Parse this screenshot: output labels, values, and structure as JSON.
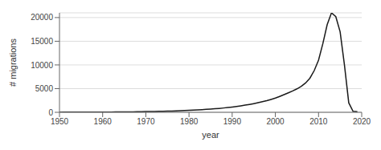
{
  "chart_data": {
    "type": "line",
    "xlabel": "year",
    "ylabel": "# migrations",
    "xlim": [
      1950,
      2020
    ],
    "ylim": [
      0,
      21000
    ],
    "xticks": [
      1950,
      1960,
      1970,
      1980,
      1990,
      2000,
      2010,
      2020
    ],
    "yticks": [
      0,
      5000,
      10000,
      15000,
      20000
    ],
    "grid": true,
    "color": "#1a1a1a",
    "x": [
      1950,
      1951,
      1952,
      1953,
      1954,
      1955,
      1956,
      1957,
      1958,
      1959,
      1960,
      1961,
      1962,
      1963,
      1964,
      1965,
      1966,
      1967,
      1968,
      1969,
      1970,
      1971,
      1972,
      1973,
      1974,
      1975,
      1976,
      1977,
      1978,
      1979,
      1980,
      1981,
      1982,
      1983,
      1984,
      1985,
      1986,
      1987,
      1988,
      1989,
      1990,
      1991,
      1992,
      1993,
      1994,
      1995,
      1996,
      1997,
      1998,
      1999,
      2000,
      2001,
      2002,
      2003,
      2004,
      2005,
      2006,
      2007,
      2008,
      2009,
      2010,
      2011,
      2012,
      2013,
      2014,
      2015,
      2016,
      2017,
      2018,
      2019
    ],
    "values": [
      20,
      22,
      24,
      26,
      28,
      30,
      35,
      38,
      40,
      45,
      50,
      55,
      60,
      65,
      70,
      80,
      90,
      100,
      115,
      130,
      150,
      165,
      180,
      200,
      220,
      245,
      270,
      300,
      335,
      370,
      415,
      460,
      510,
      560,
      615,
      675,
      745,
      825,
      910,
      1010,
      1120,
      1240,
      1370,
      1510,
      1660,
      1830,
      2020,
      2230,
      2460,
      2720,
      3000,
      3350,
      3720,
      4100,
      4500,
      4950,
      5500,
      6200,
      7200,
      8800,
      11000,
      14500,
      18500,
      21000,
      20200,
      17000,
      10000,
      2000,
      200,
      120
    ]
  }
}
